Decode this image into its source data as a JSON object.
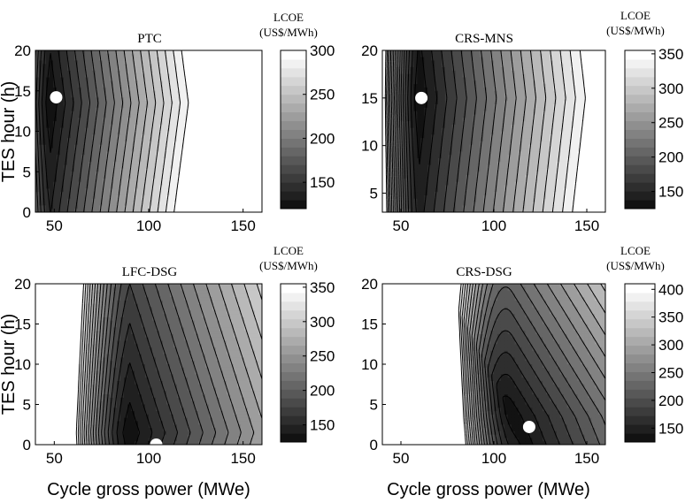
{
  "figure": {
    "ylabel": "TES hour (h)",
    "xlabel": "Cycle gross power (MWe)",
    "colorbar_title_line1": "LCOE",
    "colorbar_title_line2": "(US$/MWh)"
  },
  "chart_data": [
    {
      "type": "contour",
      "title": "PTC",
      "x": {
        "min": 40,
        "max": 160,
        "ticks": [
          50,
          100,
          150
        ]
      },
      "y": {
        "min": 0,
        "max": 20,
        "ticks": [
          0,
          5,
          10,
          15,
          20
        ]
      },
      "colorbar": {
        "min": 120,
        "max": 300,
        "ticks": [
          150,
          200,
          250,
          300
        ]
      },
      "optimum": {
        "x": 51,
        "y": 14.2
      },
      "model": {
        "min_x": 48,
        "min_y": 13.5,
        "min_val": 122,
        "max_val": 300
      }
    },
    {
      "type": "contour",
      "title": "CRS-MNS",
      "x": {
        "min": 40,
        "max": 160,
        "ticks": [
          50,
          100,
          150
        ]
      },
      "y": {
        "min": 3,
        "max": 20,
        "ticks": [
          5,
          10,
          15,
          20
        ]
      },
      "colorbar": {
        "min": 125,
        "max": 355,
        "ticks": [
          150,
          200,
          250,
          300,
          350
        ]
      },
      "optimum": {
        "x": 61,
        "y": 15
      },
      "model": {
        "min_x": 60,
        "min_y": 15,
        "min_val": 128,
        "max_val": 355
      }
    },
    {
      "type": "contour",
      "title": "LFC-DSG",
      "x": {
        "min": 40,
        "max": 160,
        "ticks": [
          50,
          100,
          150
        ]
      },
      "y": {
        "min": 0,
        "max": 20,
        "ticks": [
          0,
          5,
          10,
          15,
          20
        ]
      },
      "colorbar": {
        "min": 125,
        "max": 355,
        "ticks": [
          150,
          200,
          250,
          300,
          350
        ]
      },
      "optimum": {
        "x": 104,
        "y": 0
      },
      "model": {
        "min_x": 90,
        "min_y": 1.5,
        "min_val": 128,
        "max_val": 355
      }
    },
    {
      "type": "contour",
      "title": "CRS-DSG",
      "x": {
        "min": 40,
        "max": 160,
        "ticks": [
          50,
          100,
          150
        ]
      },
      "y": {
        "min": 0,
        "max": 20,
        "ticks": [
          0,
          5,
          10,
          15,
          20
        ]
      },
      "colorbar": {
        "min": 125,
        "max": 410,
        "ticks": [
          150,
          200,
          250,
          300,
          350,
          400
        ]
      },
      "optimum": {
        "x": 119,
        "y": 2.2
      },
      "model": {
        "min_x": 110,
        "min_y": 3.5,
        "min_val": 130,
        "max_val": 410
      }
    }
  ]
}
